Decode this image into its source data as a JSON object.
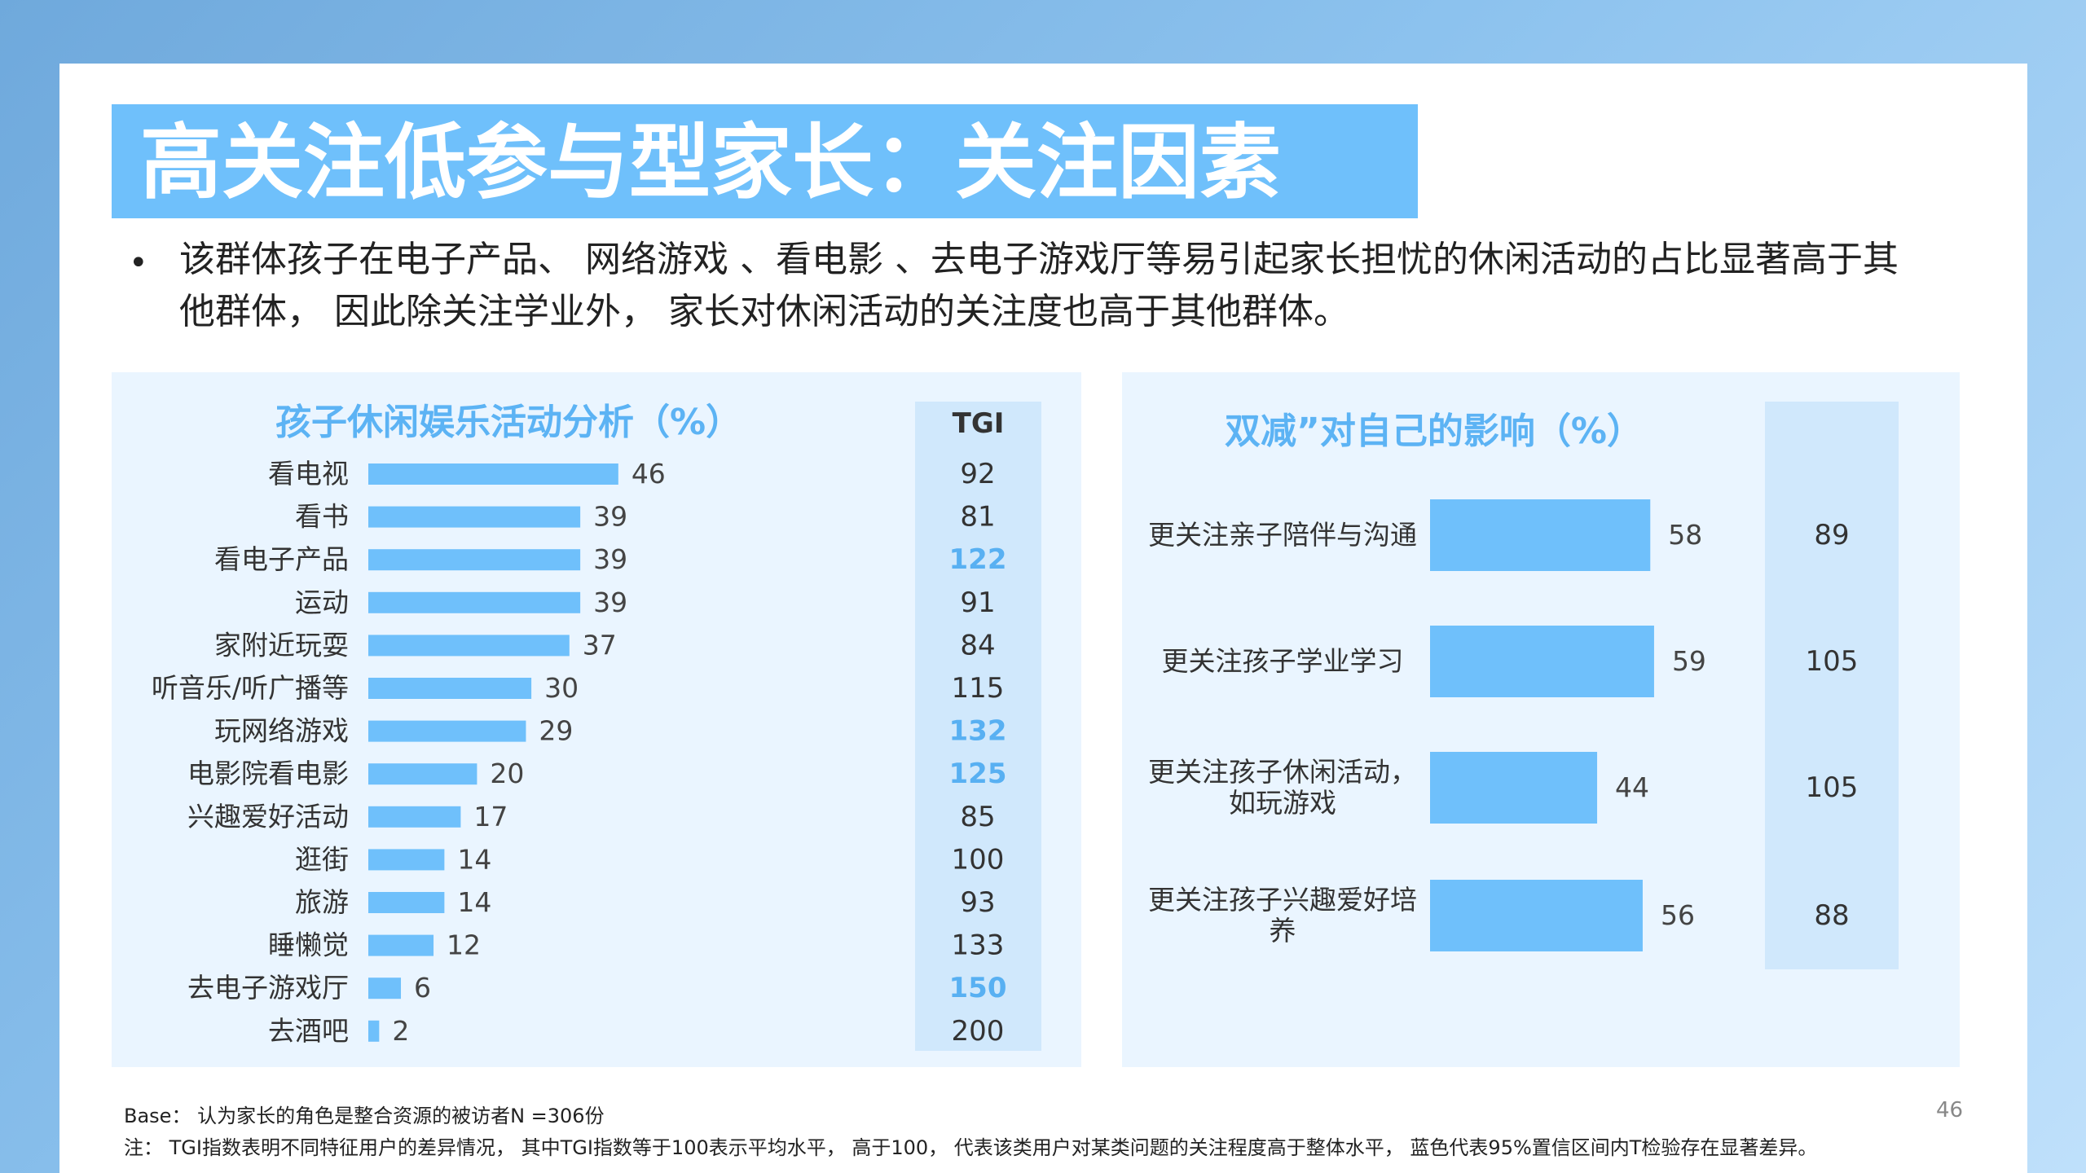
{
  "title": "高关注低参与型家长：关注因素",
  "bullet": "该群体孩子在电子产品、 网络游戏 、看电影 、去电子游戏厅等易引起家长担忧的休闲活动的占比显著高于其他群体， 因此除关注学业外， 家长对休闲活动的关注度也高于其他群体。",
  "footnote_base": "Base： 认为家长的角色是整合资源的被访者N =306份",
  "footnote_note": "注： TGI指数表明不同特征用户的差异情况， 其中TGI指数等于100表示平均水平， 高于100， 代表该类用户对某类问题的关注程度高于整体水平， 蓝色代表95%置信区间内T检验存在显著差异。",
  "page_number": "46",
  "colors": {
    "bar": "#6fc0fb",
    "tgi_significant": "#58b0f2",
    "title_bg": "#6fc0fb"
  },
  "chart_data": [
    {
      "type": "bar",
      "orientation": "horizontal",
      "title": "孩子休闲娱乐活动分析（%）",
      "categories": [
        "看电视",
        "看书",
        "看电子产品",
        "运动",
        "家附近玩耍",
        "听音乐/听广播等",
        "玩网络游戏",
        "电影院看电影",
        "兴趣爱好活动",
        "逛街",
        "旅游",
        "睡懒觉",
        "去电子游戏厅",
        "去酒吧"
      ],
      "values": [
        46,
        39,
        39,
        39,
        37,
        30,
        29,
        20,
        17,
        14,
        14,
        12,
        6,
        2
      ],
      "tgi_header": "TGI",
      "tgi": [
        92,
        81,
        122,
        91,
        84,
        115,
        132,
        125,
        85,
        100,
        93,
        133,
        150,
        200
      ],
      "tgi_significant": [
        false,
        false,
        true,
        false,
        false,
        false,
        true,
        true,
        false,
        false,
        false,
        false,
        true,
        false
      ]
    },
    {
      "type": "bar",
      "orientation": "horizontal",
      "title": "双减”对自己的影响（%）",
      "categories": [
        "更关注亲子陪伴与沟通",
        "更关注孩子学业学习",
        "更关注孩子休闲活动，如玩游戏",
        "更关注孩子兴趣爱好培养"
      ],
      "category_lines": [
        [
          "更关注亲子陪伴与沟通"
        ],
        [
          "更关注孩子学业学习"
        ],
        [
          "更关注孩子休闲活动，",
          "如玩游戏"
        ],
        [
          "更关注孩子兴趣爱好培",
          "养"
        ]
      ],
      "values": [
        58,
        59,
        44,
        56
      ],
      "tgi": [
        89,
        105,
        105,
        88
      ],
      "tgi_significant": [
        false,
        false,
        false,
        false
      ]
    }
  ]
}
